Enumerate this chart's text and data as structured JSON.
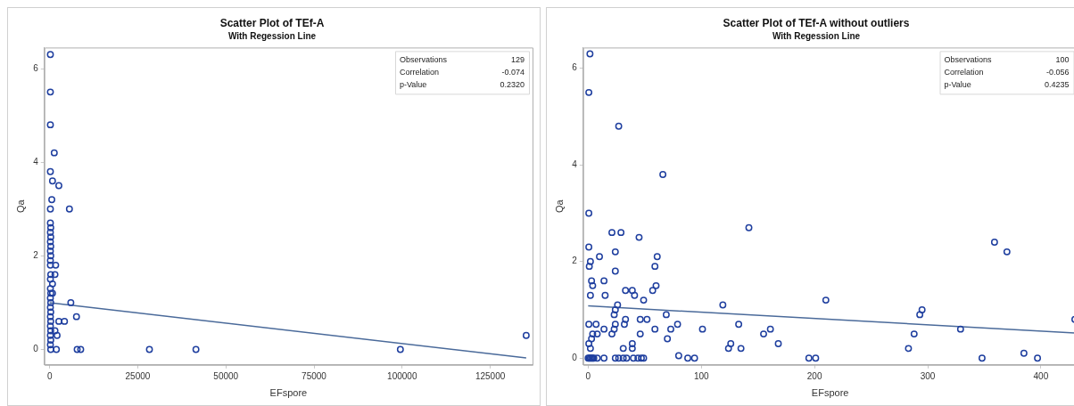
{
  "chart_data": [
    {
      "type": "scatter",
      "title": "Scatter Plot of TEf-A",
      "subtitle": "With Regession Line",
      "xlabel": "EFspore",
      "ylabel": "Qa",
      "grid": false,
      "legend": false,
      "xlim": [
        -1500,
        137000
      ],
      "xticks": [
        0,
        25000,
        50000,
        75000,
        100000,
        125000
      ],
      "ylim": [
        -0.33,
        6.45
      ],
      "yticks": [
        0,
        2,
        4,
        6
      ],
      "annotations": [
        "Observations",
        "129",
        "Correlation",
        "-0.074",
        "p-Value",
        "0.2320"
      ],
      "series": [
        {
          "type": "scatter",
          "marker": "circle",
          "color": "#1f3f9f",
          "x": [
            200,
            200,
            200,
            1300,
            200,
            800,
            2600,
            600,
            200,
            5600,
            200,
            300,
            200,
            300,
            200,
            300,
            200,
            300,
            200,
            200,
            300,
            200,
            200,
            300,
            200,
            300,
            200,
            300,
            200,
            300,
            200,
            300,
            200,
            300,
            200,
            300,
            1700,
            1500,
            800,
            800,
            6000,
            7600,
            2600,
            4200,
            2100,
            1500,
            1900,
            7800,
            8800,
            28300,
            41500,
            99500,
            135200
          ],
          "values": [
            6.3,
            5.5,
            4.8,
            4.2,
            3.8,
            3.6,
            3.5,
            3.2,
            3.0,
            3.0,
            2.7,
            2.6,
            2.5,
            2.4,
            2.3,
            2.2,
            2.1,
            2.0,
            1.9,
            1.8,
            1.6,
            1.5,
            1.3,
            1.2,
            1.1,
            1.0,
            0.9,
            0.8,
            0.7,
            0.6,
            0.5,
            0.4,
            0.3,
            0.2,
            0.1,
            0,
            1.8,
            1.6,
            1.4,
            1.2,
            1.0,
            0.7,
            0.6,
            0.6,
            0.3,
            0.4,
            0,
            0,
            0,
            0,
            0,
            0,
            0.3
          ]
        },
        {
          "type": "line",
          "marker": "none",
          "color": "#4a6a9a",
          "x": [
            0,
            135200
          ],
          "values": [
            1.0,
            -0.18
          ]
        }
      ]
    },
    {
      "type": "scatter",
      "title": "Scatter Plot of TEf-A without outliers",
      "subtitle": "With Regession Line",
      "xlabel": "EFspore",
      "ylabel": "Qa",
      "grid": false,
      "legend": false,
      "xlim": [
        -4.4,
        432
      ],
      "xticks": [
        0,
        100,
        200,
        300,
        400
      ],
      "ylim": [
        -0.14,
        6.43
      ],
      "yticks": [
        0,
        2,
        4,
        6
      ],
      "annotations": [
        "Observations",
        "100",
        "Correlation",
        "-0.056",
        "p-Value",
        "0.4235"
      ],
      "series": [
        {
          "type": "scatter",
          "marker": "circle",
          "color": "#1f3f9f",
          "x": [
            1.6,
            0.6,
            27,
            66,
            0.6,
            142,
            359,
            370,
            21,
            29,
            45,
            0.6,
            24,
            10,
            61,
            2,
            1,
            59,
            24,
            3,
            14,
            4,
            60,
            57,
            33,
            39,
            2,
            15,
            41,
            49,
            210,
            119,
            26,
            295,
            24,
            293,
            23,
            69,
            430,
            33,
            46,
            52,
            0.6,
            7,
            24,
            32,
            79,
            133,
            14,
            23,
            59,
            73,
            101,
            161,
            329,
            4,
            8,
            21,
            46,
            155,
            288,
            3,
            70,
            0.6,
            39,
            126,
            168,
            2,
            31,
            39,
            124,
            135,
            283,
            385,
            80,
            0,
            1,
            2,
            3,
            4,
            5,
            8,
            14,
            24,
            27,
            31,
            34,
            40,
            44,
            47,
            49,
            88,
            94,
            195,
            201,
            348,
            397
          ],
          "values": [
            6.3,
            5.5,
            4.8,
            3.8,
            3.0,
            2.7,
            2.4,
            2.2,
            2.6,
            2.6,
            2.5,
            2.3,
            2.2,
            2.1,
            2.1,
            2.0,
            1.9,
            1.9,
            1.8,
            1.6,
            1.6,
            1.5,
            1.5,
            1.4,
            1.4,
            1.4,
            1.3,
            1.3,
            1.3,
            1.2,
            1.2,
            1.1,
            1.1,
            1.0,
            1.0,
            0.9,
            0.9,
            0.9,
            0.8,
            0.8,
            0.8,
            0.8,
            0.7,
            0.7,
            0.7,
            0.7,
            0.7,
            0.7,
            0.6,
            0.6,
            0.6,
            0.6,
            0.6,
            0.6,
            0.6,
            0.5,
            0.5,
            0.5,
            0.5,
            0.5,
            0.5,
            0.4,
            0.4,
            0.3,
            0.3,
            0.3,
            0.3,
            0.2,
            0.2,
            0.2,
            0.2,
            0.2,
            0.2,
            0.1,
            0.05,
            0,
            0,
            0,
            0,
            0,
            0,
            0,
            0,
            0,
            0,
            0,
            0,
            0,
            0,
            0,
            0,
            0,
            0,
            0,
            0,
            0,
            0
          ]
        },
        {
          "type": "line",
          "marker": "none",
          "color": "#4a6a9a",
          "x": [
            0,
            430
          ],
          "values": [
            1.08,
            0.52
          ]
        }
      ]
    }
  ]
}
